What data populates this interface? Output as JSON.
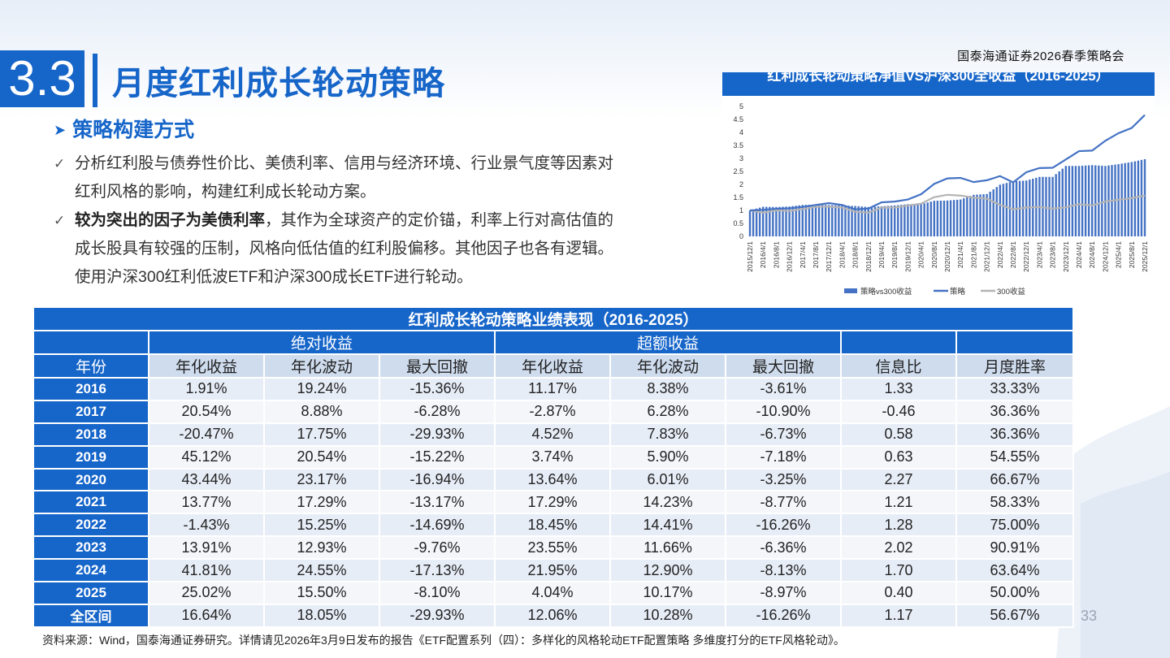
{
  "header": {
    "org": "国泰海通证券2026春季策略会"
  },
  "section": {
    "number": "3.3",
    "title": "月度红利成长轮动策略"
  },
  "subheading": "策略构建方式",
  "bullets": {
    "b1_line1": "分析红利股与债券性价比、美债利率、信用与经济环境、行业景气度等因素对",
    "b1_line2": "红利风格的影响，构建红利成长轮动方案。",
    "b2_bold": "较为突出的因子为美债利率",
    "b2_rest": "，其作为全球资产的定价锚，利率上行对高估值的",
    "b2_line2": "成长股具有较强的压制，风格向低估值的红利股偏移。其他因子也各有逻辑。",
    "b2_line3": "使用沪深300红利低波ETF和沪深300成长ETF进行轮动。"
  },
  "chart_data": {
    "type": "line",
    "title": "红利成长轮动策略净值VS沪深300全收益（2016-2025）",
    "ylim": [
      0,
      5
    ],
    "yticks": [
      "0",
      "0.5",
      "1",
      "1.5",
      "2",
      "2.5",
      "3",
      "3.5",
      "4",
      "4.5",
      "5"
    ],
    "xticks": [
      "2015/12/1",
      "2016/4/1",
      "2016/8/1",
      "2016/12/1",
      "2017/4/1",
      "2017/8/1",
      "2017/12/1",
      "2018/4/1",
      "2018/8/1",
      "2018/12/1",
      "2019/4/1",
      "2019/8/1",
      "2019/12/1",
      "2020/4/1",
      "2020/8/1",
      "2020/12/1",
      "2021/4/1",
      "2021/8/1",
      "2021/12/1",
      "2022/4/1",
      "2022/8/1",
      "2022/12/1",
      "2023/4/1",
      "2023/8/1",
      "2023/12/1",
      "2024/4/1",
      "2024/8/1",
      "2024/12/1",
      "2025/4/1",
      "2025/8/1",
      "2025/12/1"
    ],
    "series": [
      {
        "name": "策略vs300收益",
        "kind": "bar",
        "color": "#4472c4",
        "values": [
          1.0,
          1.14,
          1.13,
          1.15,
          1.21,
          1.22,
          1.21,
          1.19,
          1.17,
          1.13,
          1.16,
          1.19,
          1.24,
          1.24,
          1.37,
          1.38,
          1.42,
          1.6,
          1.63,
          1.99,
          2.12,
          2.15,
          2.29,
          2.29,
          2.71,
          2.71,
          2.74,
          2.71,
          2.78,
          2.86,
          2.97
        ]
      },
      {
        "name": "策略",
        "kind": "line",
        "color": "#4472c4",
        "values": [
          1.0,
          1.02,
          1.06,
          1.08,
          1.13,
          1.21,
          1.28,
          1.21,
          1.04,
          1.07,
          1.31,
          1.34,
          1.42,
          1.62,
          2.02,
          2.23,
          2.25,
          2.09,
          2.16,
          2.32,
          2.08,
          2.47,
          2.63,
          2.64,
          2.96,
          3.28,
          3.3,
          3.68,
          3.97,
          4.17,
          4.67
        ]
      },
      {
        "name": "300收益",
        "kind": "line",
        "color": "#b4b4b4",
        "values": [
          1.0,
          0.91,
          1.0,
          0.98,
          1.05,
          1.14,
          1.14,
          1.11,
          0.95,
          0.91,
          1.11,
          1.11,
          1.19,
          1.26,
          1.51,
          1.6,
          1.57,
          1.49,
          1.45,
          1.21,
          1.04,
          1.11,
          1.13,
          1.07,
          1.12,
          1.24,
          1.19,
          1.34,
          1.41,
          1.47,
          1.57
        ]
      }
    ],
    "legend": [
      "策略vs300收益",
      "策略",
      "300收益"
    ]
  },
  "table": {
    "title": "红利成长轮动策略业绩表现（2016-2025）",
    "group_abs": "绝对收益",
    "group_excess": "超额收益",
    "headers": [
      "年份",
      "年化收益",
      "年化波动",
      "最大回撤",
      "年化收益",
      "年化波动",
      "最大回撤",
      "信息比",
      "月度胜率"
    ],
    "rows": [
      [
        "2016",
        "1.91%",
        "19.24%",
        "-15.36%",
        "11.17%",
        "8.38%",
        "-3.61%",
        "1.33",
        "33.33%"
      ],
      [
        "2017",
        "20.54%",
        "8.88%",
        "-6.28%",
        "-2.87%",
        "6.28%",
        "-10.90%",
        "-0.46",
        "36.36%"
      ],
      [
        "2018",
        "-20.47%",
        "17.75%",
        "-29.93%",
        "4.52%",
        "7.83%",
        "-6.73%",
        "0.58",
        "36.36%"
      ],
      [
        "2019",
        "45.12%",
        "20.54%",
        "-15.22%",
        "3.74%",
        "5.90%",
        "-7.18%",
        "0.63",
        "54.55%"
      ],
      [
        "2020",
        "43.44%",
        "23.17%",
        "-16.94%",
        "13.64%",
        "6.01%",
        "-3.25%",
        "2.27",
        "66.67%"
      ],
      [
        "2021",
        "13.77%",
        "17.29%",
        "-13.17%",
        "17.29%",
        "14.23%",
        "-8.77%",
        "1.21",
        "58.33%"
      ],
      [
        "2022",
        "-1.43%",
        "15.25%",
        "-14.69%",
        "18.45%",
        "14.41%",
        "-16.26%",
        "1.28",
        "75.00%"
      ],
      [
        "2023",
        "13.91%",
        "12.93%",
        "-9.76%",
        "23.55%",
        "11.66%",
        "-6.36%",
        "2.02",
        "90.91%"
      ],
      [
        "2024",
        "41.81%",
        "24.55%",
        "-17.13%",
        "21.95%",
        "12.90%",
        "-8.13%",
        "1.70",
        "63.64%"
      ],
      [
        "2025",
        "25.02%",
        "15.50%",
        "-8.10%",
        "4.04%",
        "10.17%",
        "-8.97%",
        "0.40",
        "50.00%"
      ],
      [
        "全区间",
        "16.64%",
        "18.05%",
        "-29.93%",
        "12.06%",
        "10.28%",
        "-16.26%",
        "1.17",
        "56.67%"
      ]
    ]
  },
  "page_number": "33",
  "source_note": "资料来源：Wind，国泰海通证券研究。详情请见2026年3月9日发布的报告《ETF配置系列（四）：多样化的风格轮动ETF配置策略 多维度打分的ETF风格轮动》。"
}
